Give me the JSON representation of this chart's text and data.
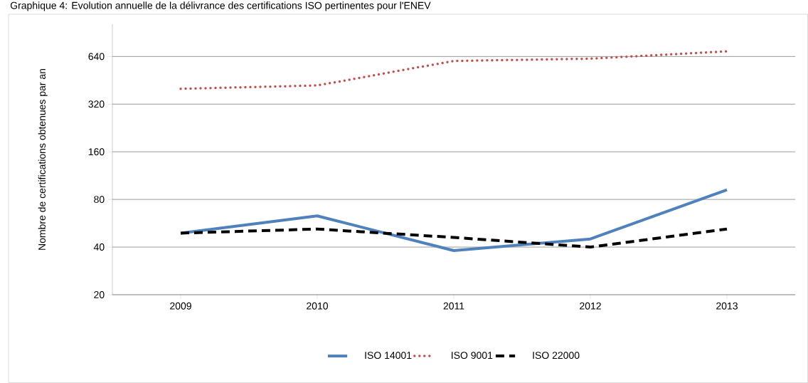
{
  "chart_data": {
    "type": "line",
    "title": "Graphique 4: Evolution annuelle de la délivrance des certifications ISO pertinentes pour l'ENEV",
    "ylabel": "Nombre de certifications obtenues par an",
    "categories": [
      "2009",
      "2010",
      "2011",
      "2012",
      "2013"
    ],
    "series": [
      {
        "name": "ISO 14001",
        "color": "#4f81bd",
        "line_style": "solid",
        "values": [
          49,
          63,
          38,
          45,
          92
        ]
      },
      {
        "name": "ISO 9001",
        "color": "#c0504d",
        "line_style": "dotted",
        "values": [
          400,
          420,
          600,
          620,
          690
        ]
      },
      {
        "name": "ISO 22000",
        "color": "#000000",
        "line_style": "dashed",
        "values": [
          49,
          52,
          46,
          40,
          52
        ]
      }
    ],
    "log": "y",
    "ylim": [
      20,
      1024
    ],
    "yticks": [
      20,
      40,
      80,
      160,
      320,
      640
    ],
    "grid": "y",
    "legend": "bottom",
    "marker": "none"
  }
}
